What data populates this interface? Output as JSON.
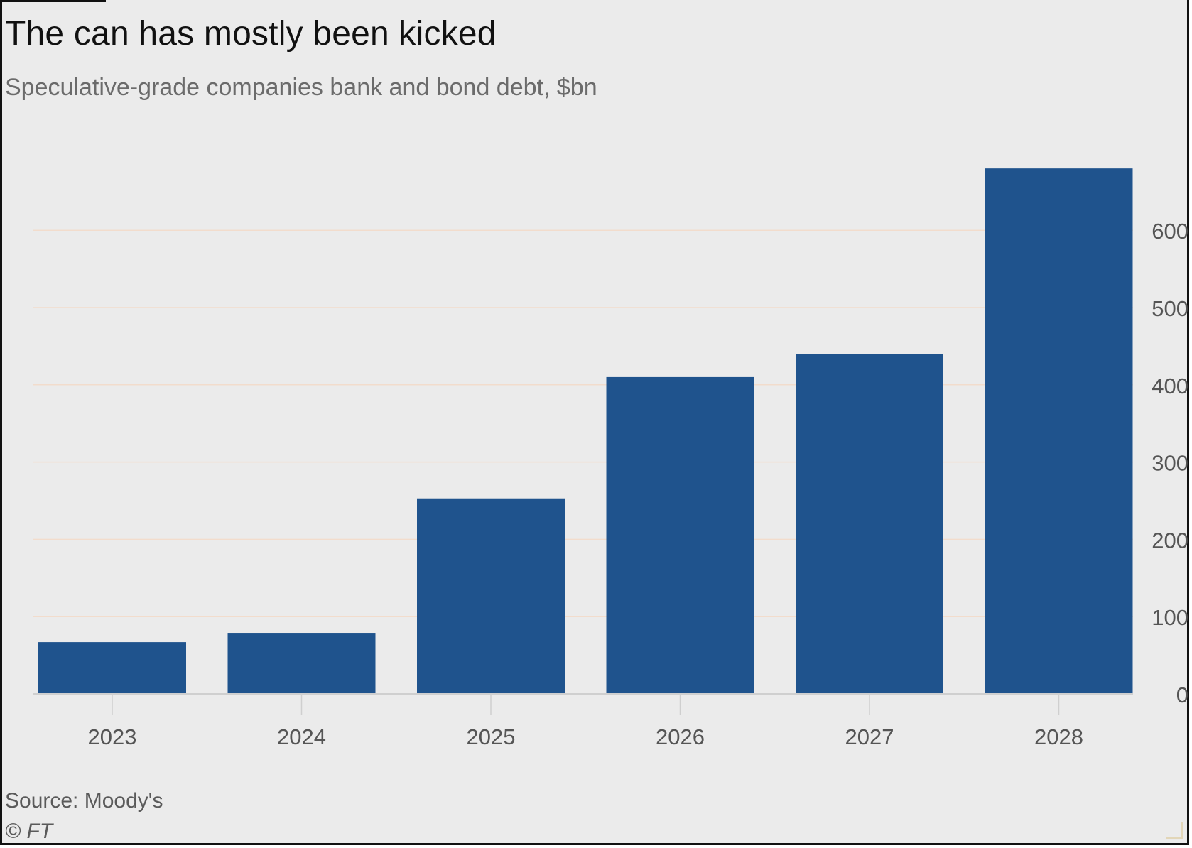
{
  "header": {
    "title": "The can has mostly been kicked",
    "subtitle": "Speculative-grade companies bank and bond debt, $bn"
  },
  "footer": {
    "source": "Source: Moody's",
    "credit": "© FT"
  },
  "colors": {
    "bar": "#1f538d",
    "gridline": "#f2dccc",
    "axis": "#cfcfcf",
    "tick_label": "#555555",
    "background": "#ebebeb"
  },
  "chart_data": {
    "type": "bar",
    "categories": [
      "2023",
      "2024",
      "2025",
      "2026",
      "2027",
      "2028"
    ],
    "values": [
      67,
      79,
      253,
      410,
      440,
      680
    ],
    "title": "The can has mostly been kicked",
    "subtitle": "Speculative-grade companies bank and bond debt, $bn",
    "xlabel": "",
    "ylabel": "",
    "ylim": [
      0,
      680
    ],
    "yticks": [
      0,
      100,
      200,
      300,
      400,
      500,
      600
    ],
    "y_axis_side": "right",
    "grid": true,
    "legend": "none"
  }
}
